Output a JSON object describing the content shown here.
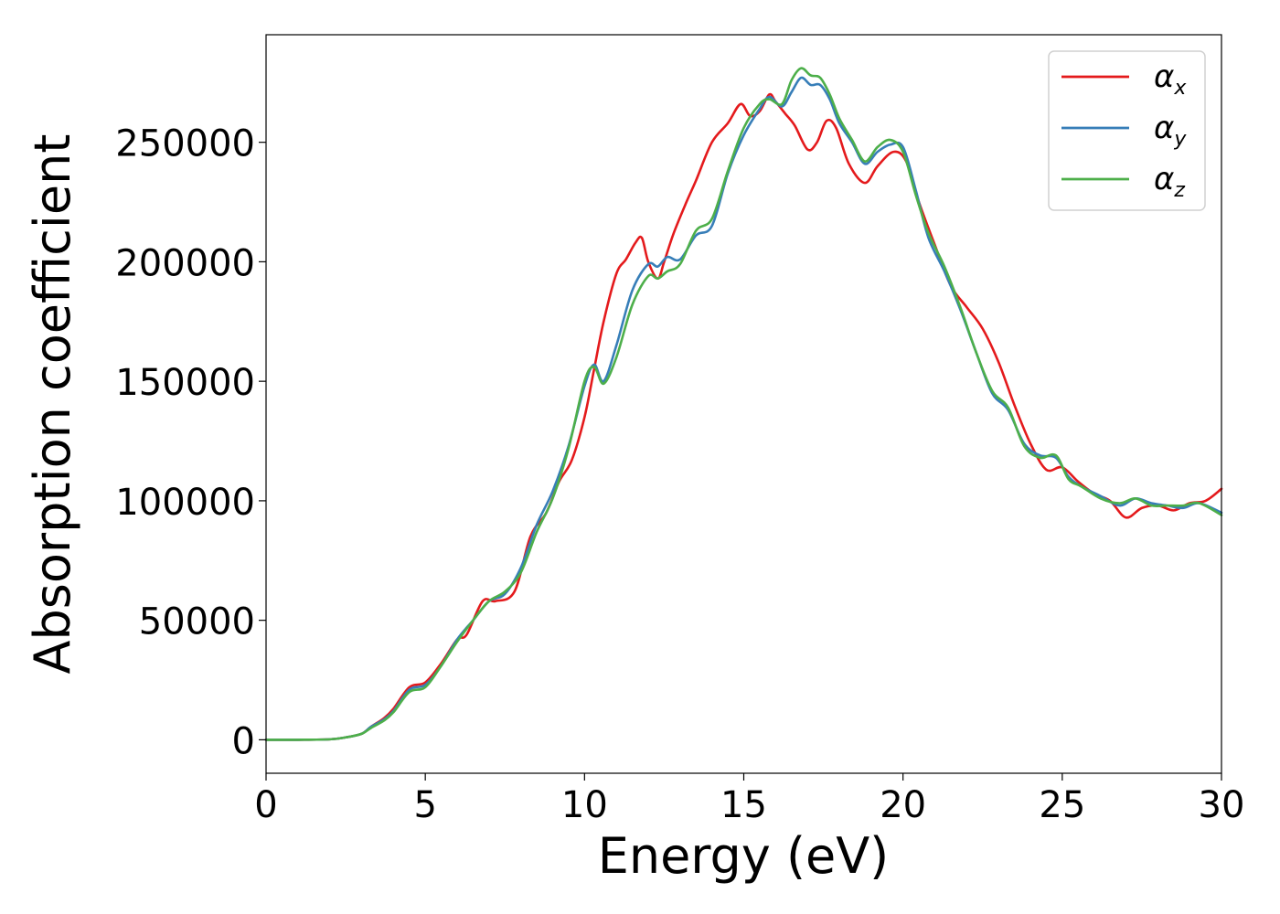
{
  "chart_data": {
    "type": "line",
    "title": "",
    "xlabel": "Energy (eV)",
    "ylabel": "Absorption coefficient",
    "xlim": [
      0,
      30
    ],
    "ylim": [
      -14000,
      295000
    ],
    "xticks": [
      0,
      5,
      10,
      15,
      20,
      25,
      30
    ],
    "xtick_labels": [
      "0",
      "5",
      "10",
      "15",
      "20",
      "25",
      "30"
    ],
    "yticks": [
      0,
      50000,
      100000,
      150000,
      200000,
      250000
    ],
    "ytick_labels": [
      "0",
      "50000",
      "100000",
      "150000",
      "200000",
      "250000"
    ],
    "grid": false,
    "legend_position": "top-right",
    "series": [
      {
        "name": "α",
        "subscript": "x",
        "color": "#e41a1c",
        "x": [
          0,
          1,
          2,
          2.5,
          3,
          3.3,
          3.7,
          4,
          4.5,
          5,
          5.5,
          6,
          6.3,
          6.8,
          7.2,
          7.8,
          8.3,
          8.8,
          9.2,
          9.6,
          10,
          10.3,
          10.6,
          11,
          11.3,
          11.6,
          11.8,
          12,
          12.3,
          12.5,
          12.8,
          13.2,
          13.5,
          14,
          14.5,
          14.9,
          15.2,
          15.5,
          15.8,
          16,
          16.3,
          16.6,
          17,
          17.3,
          17.6,
          17.9,
          18.3,
          18.8,
          19.2,
          19.7,
          20.1,
          20.5,
          21,
          21.5,
          22,
          22.5,
          23,
          23.5,
          24,
          24.5,
          25,
          25.5,
          26,
          26.5,
          27,
          27.5,
          28,
          28.5,
          29,
          29.5,
          30
        ],
        "y": [
          0,
          0,
          200,
          1000,
          2500,
          5500,
          9000,
          13000,
          22000,
          24000,
          32000,
          42000,
          44000,
          58000,
          58000,
          62000,
          85000,
          95000,
          108000,
          117000,
          135000,
          155000,
          175000,
          195000,
          201000,
          208000,
          210000,
          200000,
          193000,
          200000,
          212000,
          225000,
          234000,
          250000,
          258000,
          266000,
          261000,
          263000,
          270000,
          267000,
          262000,
          257000,
          247000,
          250000,
          259000,
          256000,
          241000,
          233000,
          240000,
          246000,
          242000,
          225000,
          207000,
          190000,
          181000,
          172000,
          158000,
          140000,
          124000,
          113000,
          114000,
          108000,
          103000,
          100000,
          93000,
          97000,
          98000,
          96000,
          99000,
          100000,
          105000
        ]
      },
      {
        "name": "α",
        "subscript": "y",
        "color": "#377eb8",
        "x": [
          0,
          1,
          2,
          2.5,
          3,
          3.3,
          3.7,
          4,
          4.5,
          5,
          5.5,
          6,
          6.5,
          7,
          7.5,
          8,
          8.5,
          9,
          9.5,
          10,
          10.3,
          10.6,
          11,
          11.5,
          12,
          12.3,
          12.6,
          13,
          13.5,
          14,
          14.5,
          15,
          15.5,
          15.8,
          16.2,
          16.5,
          16.8,
          17.1,
          17.4,
          17.7,
          18,
          18.4,
          18.8,
          19.2,
          19.6,
          20,
          20.4,
          20.8,
          21.3,
          21.8,
          22.3,
          22.8,
          23.3,
          23.8,
          24.3,
          24.8,
          25.2,
          25.6,
          26.2,
          26.8,
          27.3,
          27.8,
          28.3,
          28.8,
          29.3,
          30
        ],
        "y": [
          0,
          0,
          200,
          1000,
          2500,
          5500,
          8500,
          12000,
          21000,
          23000,
          31000,
          42000,
          50000,
          58000,
          61000,
          72000,
          90000,
          104000,
          123000,
          148000,
          157000,
          150000,
          165000,
          188000,
          199000,
          198000,
          202000,
          201000,
          211000,
          215000,
          237000,
          253000,
          264000,
          269000,
          265000,
          271000,
          277000,
          274000,
          274000,
          268000,
          258000,
          250000,
          241000,
          246000,
          249000,
          248000,
          230000,
          210000,
          196000,
          180000,
          162000,
          145000,
          138000,
          124000,
          119000,
          118000,
          110000,
          106000,
          102000,
          98000,
          101000,
          99000,
          98000,
          97000,
          99000,
          95000
        ]
      },
      {
        "name": "α",
        "subscript": "z",
        "color": "#4daf4a",
        "x": [
          0,
          1,
          2,
          2.5,
          3,
          3.3,
          3.7,
          4,
          4.5,
          5,
          5.5,
          6,
          6.5,
          7,
          7.5,
          8,
          8.5,
          9,
          9.5,
          10,
          10.3,
          10.6,
          11,
          11.5,
          12,
          12.3,
          12.6,
          13,
          13.5,
          14,
          14.5,
          15,
          15.5,
          15.8,
          16.2,
          16.5,
          16.8,
          17.1,
          17.4,
          17.7,
          18,
          18.4,
          18.8,
          19.2,
          19.6,
          20,
          20.4,
          20.8,
          21.3,
          21.8,
          22.3,
          22.8,
          23.3,
          23.8,
          24.3,
          24.8,
          25.2,
          25.6,
          26.2,
          26.8,
          27.3,
          27.8,
          28.3,
          28.8,
          29.3,
          30
        ],
        "y": [
          0,
          0,
          200,
          1000,
          2500,
          5000,
          8000,
          11500,
          20000,
          22000,
          31000,
          41000,
          50000,
          58000,
          62000,
          70000,
          87000,
          101000,
          122000,
          150000,
          156000,
          149000,
          160000,
          182000,
          194000,
          193000,
          196000,
          199000,
          213000,
          218000,
          238000,
          256000,
          266000,
          268000,
          266000,
          276000,
          281000,
          278000,
          277000,
          270000,
          260000,
          251000,
          242000,
          248000,
          251000,
          246000,
          228000,
          212000,
          198000,
          181000,
          162000,
          146000,
          139000,
          123000,
          118000,
          119000,
          109000,
          106000,
          101000,
          99000,
          101000,
          98000,
          98000,
          98000,
          99000,
          94000
        ]
      }
    ]
  }
}
